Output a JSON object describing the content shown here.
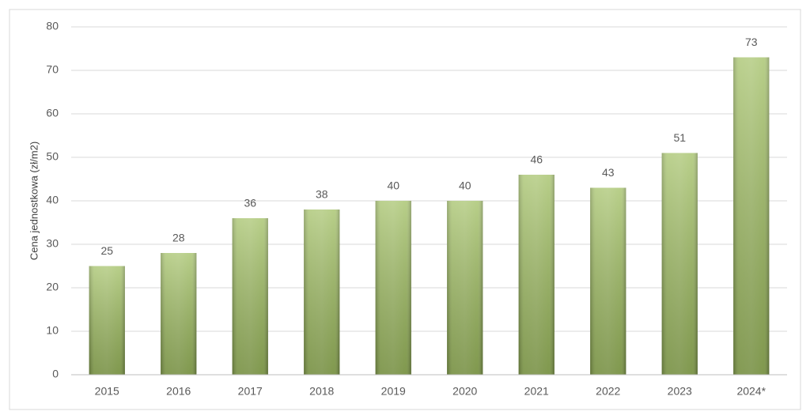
{
  "chart_data": {
    "type": "bar",
    "y_label": "Cena jednostkowa (zł/m2)",
    "categories": [
      "2015",
      "2016",
      "2017",
      "2018",
      "2019",
      "2020",
      "2021",
      "2022",
      "2023",
      "2024*"
    ],
    "values": [
      25,
      28,
      36,
      38,
      40,
      40,
      46,
      43,
      51,
      73
    ],
    "color": "#9bbb59",
    "ylim": [
      0,
      80
    ],
    "yticks": [
      0,
      10,
      20,
      30,
      40,
      50,
      60,
      70,
      80
    ],
    "grid": true
  }
}
